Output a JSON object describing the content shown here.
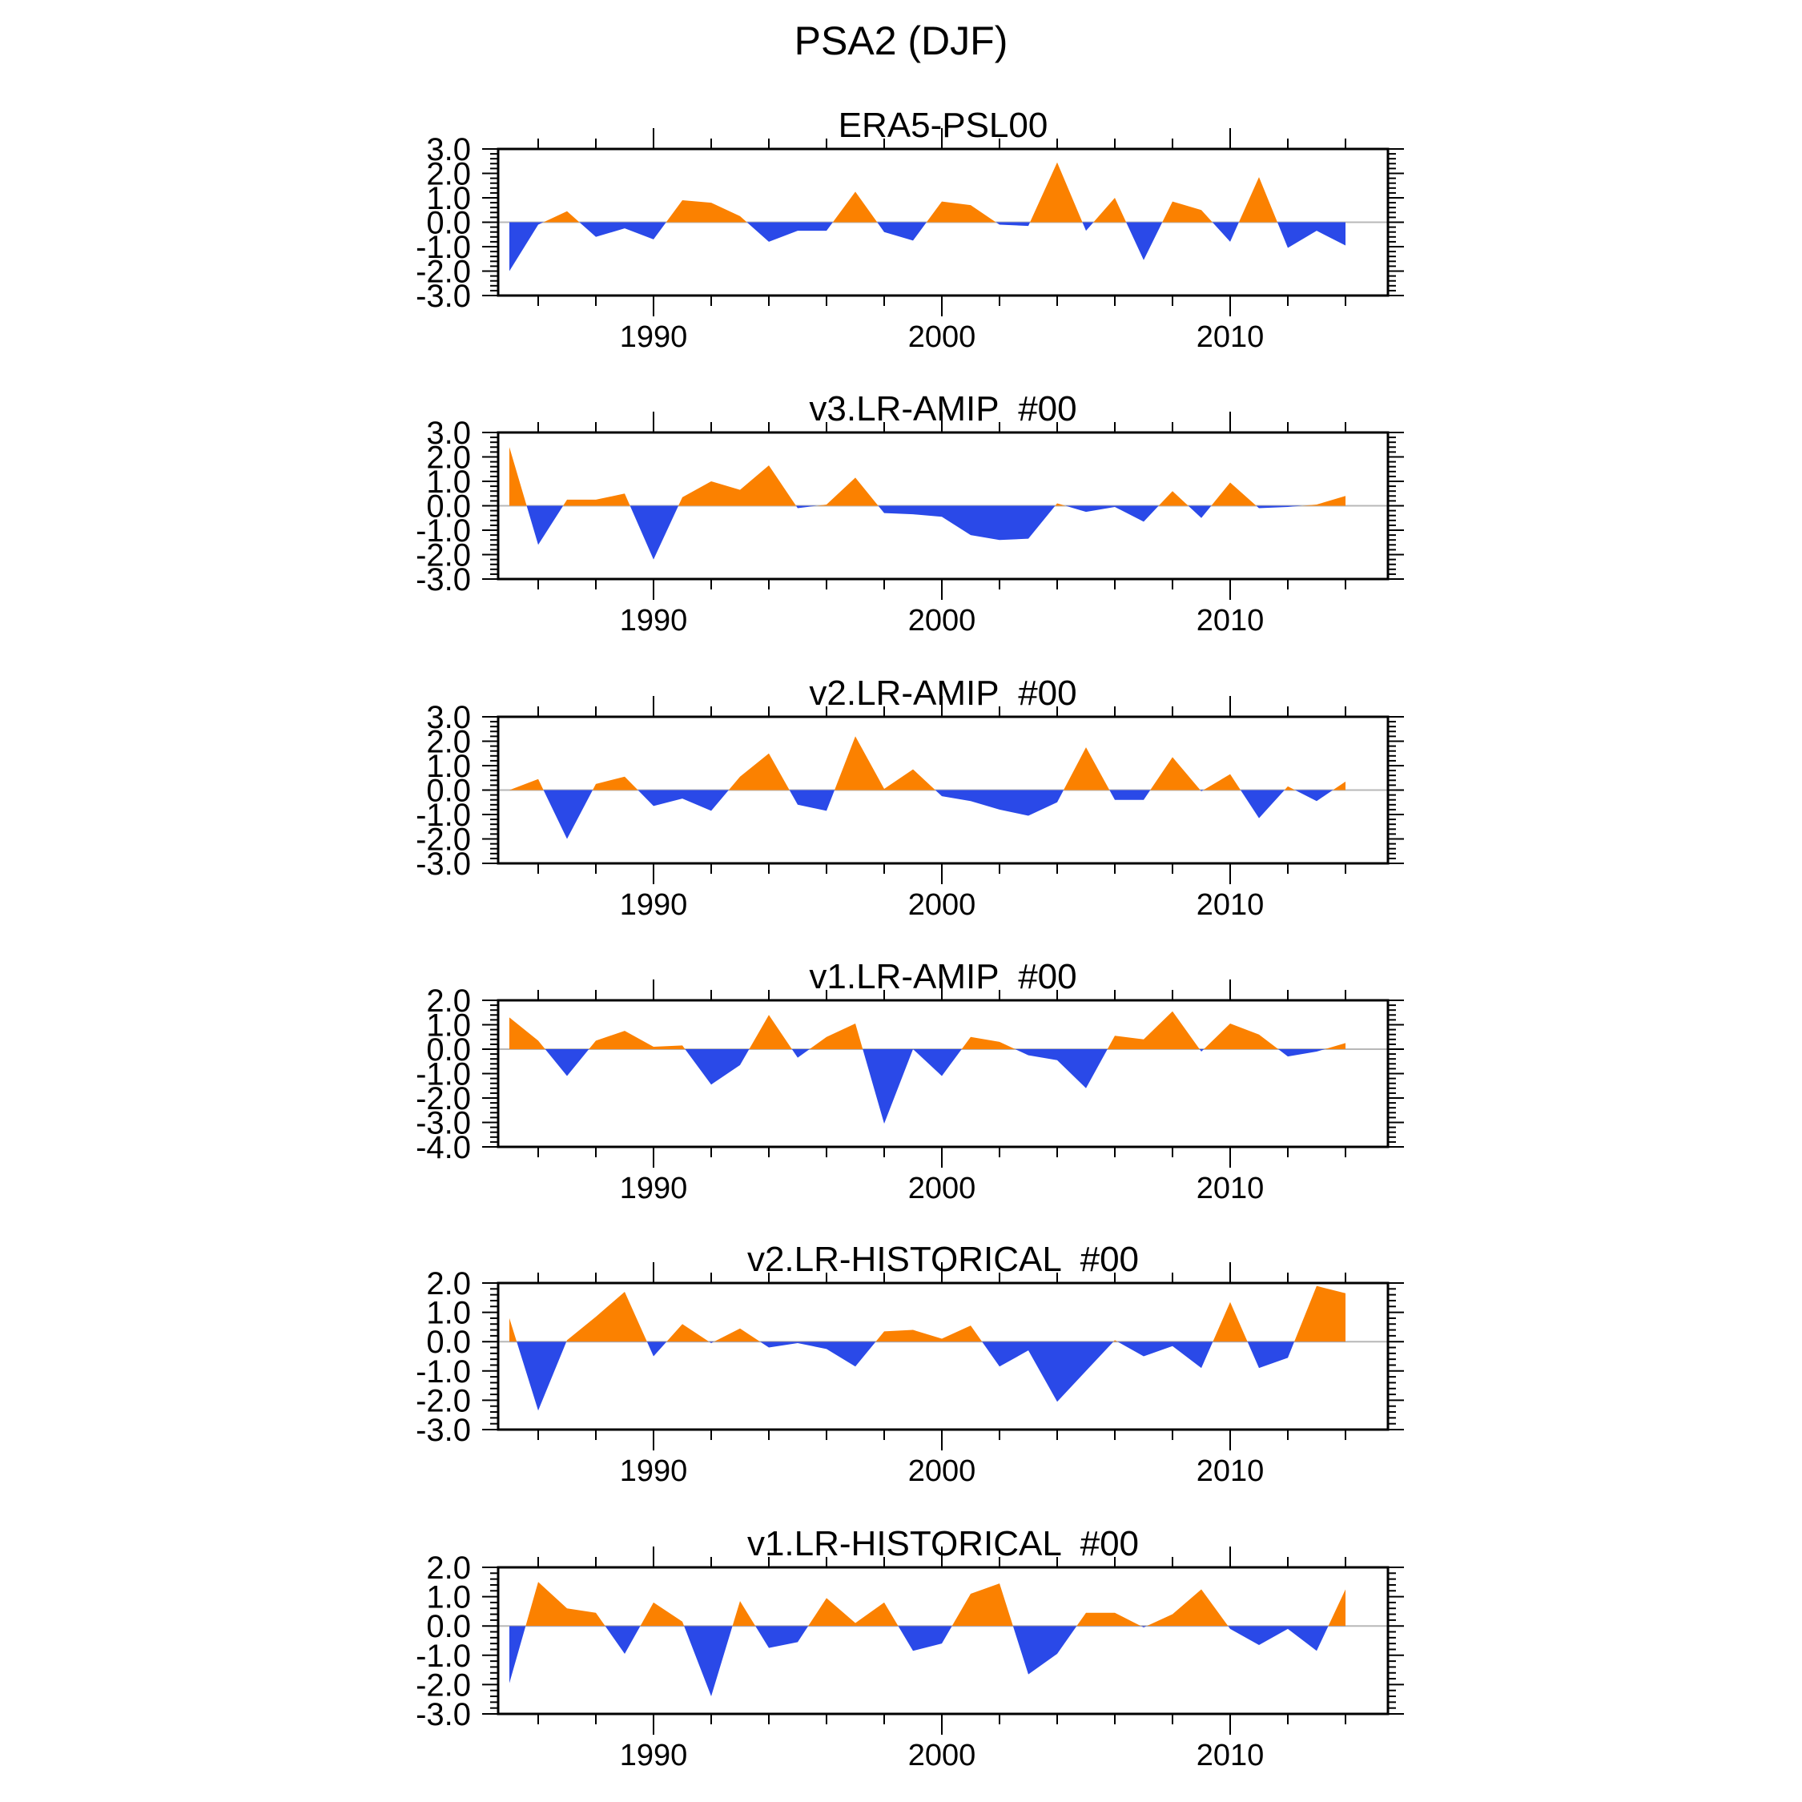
{
  "figure_title": "PSA2 (DJF)",
  "colors": {
    "positive_fill": "#fb8100",
    "negative_fill": "#2a49e8",
    "zero_line": "#b8b8b8",
    "frame": "#000000"
  },
  "axis": {
    "x_major_years": [
      1990,
      2000,
      2010
    ],
    "x_tick_labels": [
      "1990",
      "2000",
      "2010"
    ],
    "x_minor_step_years": 2,
    "y_minor_step": 0.2
  },
  "years": [
    1985,
    1986,
    1987,
    1988,
    1989,
    1990,
    1991,
    1992,
    1993,
    1994,
    1995,
    1996,
    1997,
    1998,
    1999,
    2000,
    2001,
    2002,
    2003,
    2004,
    2005,
    2006,
    2007,
    2008,
    2009,
    2010,
    2011,
    2012,
    2013,
    2014
  ],
  "chart_data": [
    {
      "type": "area",
      "title": "ERA5-PSL00",
      "ylim": [
        -3,
        3
      ],
      "ytick_labels": [
        "3.0",
        "2.0",
        "1.0",
        "0.0",
        "-1.0",
        "-2.0",
        "-3.0"
      ],
      "values": [
        -2.0,
        -0.1,
        0.45,
        -0.6,
        -0.25,
        -0.7,
        0.9,
        0.8,
        0.25,
        -0.8,
        -0.35,
        -0.35,
        1.25,
        -0.4,
        -0.75,
        0.85,
        0.7,
        -0.1,
        -0.15,
        2.45,
        -0.35,
        1.0,
        -1.55,
        0.85,
        0.5,
        -0.8,
        1.85,
        -1.05,
        -0.35,
        -0.95
      ]
    },
    {
      "type": "area",
      "title": "v3.LR-AMIP  #00",
      "ylim": [
        -3,
        3
      ],
      "ytick_labels": [
        "3.0",
        "2.0",
        "1.0",
        "0.0",
        "-1.0",
        "-2.0",
        "-3.0"
      ],
      "values": [
        2.4,
        -1.6,
        0.25,
        0.25,
        0.5,
        -2.2,
        0.35,
        1.0,
        0.65,
        1.65,
        -0.1,
        0.05,
        1.15,
        -0.3,
        -0.35,
        -0.45,
        -1.2,
        -1.4,
        -1.35,
        0.1,
        -0.25,
        -0.05,
        -0.65,
        0.6,
        -0.5,
        0.95,
        -0.1,
        -0.05,
        0.05,
        0.4
      ]
    },
    {
      "type": "area",
      "title": "v2.LR-AMIP  #00",
      "ylim": [
        -3,
        3
      ],
      "ytick_labels": [
        "3.0",
        "2.0",
        "1.0",
        "0.0",
        "-1.0",
        "-2.0",
        "-3.0"
      ],
      "values": [
        0.0,
        0.45,
        -2.0,
        0.25,
        0.55,
        -0.65,
        -0.35,
        -0.85,
        0.55,
        1.5,
        -0.6,
        -0.85,
        2.2,
        0.05,
        0.85,
        -0.25,
        -0.45,
        -0.8,
        -1.05,
        -0.5,
        1.75,
        -0.4,
        -0.4,
        1.35,
        -0.05,
        0.65,
        -1.15,
        0.15,
        -0.45,
        0.35
      ]
    },
    {
      "type": "area",
      "title": "v1.LR-AMIP  #00",
      "ylim": [
        -4,
        2
      ],
      "ytick_labels": [
        "2.0",
        "1.0",
        "0.0",
        "-1.0",
        "-2.0",
        "-3.0",
        "-4.0"
      ],
      "values": [
        1.3,
        0.35,
        -1.1,
        0.35,
        0.75,
        0.1,
        0.15,
        -1.45,
        -0.65,
        1.4,
        -0.35,
        0.5,
        1.05,
        -3.05,
        0.0,
        -1.1,
        0.5,
        0.3,
        -0.25,
        -0.45,
        -1.6,
        0.55,
        0.4,
        1.55,
        -0.1,
        1.05,
        0.6,
        -0.3,
        -0.1,
        0.25
      ]
    },
    {
      "type": "area",
      "title": "v2.LR-HISTORICAL  #00",
      "ylim": [
        -3,
        2
      ],
      "ytick_labels": [
        "2.0",
        "1.0",
        "0.0",
        "-1.0",
        "-2.0",
        "-3.0"
      ],
      "values": [
        0.8,
        -2.35,
        0.05,
        0.85,
        1.7,
        -0.5,
        0.6,
        -0.05,
        0.45,
        -0.2,
        -0.05,
        -0.25,
        -0.85,
        0.35,
        0.4,
        0.1,
        0.55,
        -0.85,
        -0.3,
        -2.05,
        -1.0,
        0.05,
        -0.5,
        -0.15,
        -0.9,
        1.35,
        -0.9,
        -0.55,
        1.9,
        1.65
      ]
    },
    {
      "type": "area",
      "title": "v1.LR-HISTORICAL  #00",
      "ylim": [
        -3,
        2
      ],
      "ytick_labels": [
        "2.0",
        "1.0",
        "0.0",
        "-1.0",
        "-2.0",
        "-3.0"
      ],
      "values": [
        -1.95,
        1.5,
        0.6,
        0.45,
        -0.95,
        0.8,
        0.15,
        -2.4,
        0.85,
        -0.75,
        -0.55,
        0.95,
        0.1,
        0.8,
        -0.85,
        -0.6,
        1.1,
        1.45,
        -1.65,
        -0.95,
        0.45,
        0.45,
        -0.05,
        0.4,
        1.25,
        -0.1,
        -0.65,
        -0.1,
        -0.85,
        1.25
      ]
    }
  ]
}
